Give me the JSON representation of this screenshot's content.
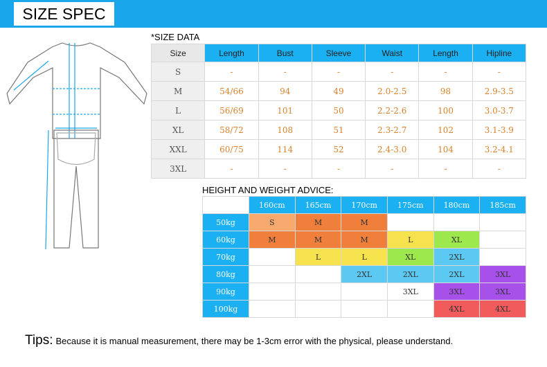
{
  "header": {
    "title": "SIZE SPEC"
  },
  "size_table": {
    "label": "*SIZE DATA",
    "columns": [
      "Size",
      "Length",
      "Bust",
      "Sleeve",
      "Waist",
      "Length",
      "Hipline"
    ],
    "rows": [
      [
        "S",
        "-",
        "-",
        "-",
        "-",
        "-",
        "-"
      ],
      [
        "M",
        "54/66",
        "94",
        "49",
        "2.0-2.5",
        "98",
        "2.9-3.5"
      ],
      [
        "L",
        "56/69",
        "101",
        "50",
        "2.2-2.6",
        "100",
        "3.0-3.7"
      ],
      [
        "XL",
        "58/72",
        "108",
        "51",
        "2.3-2.7",
        "102",
        "3.1-3.9"
      ],
      [
        "XXL",
        "60/75",
        "114",
        "52",
        "2.4-3.0",
        "104",
        "3.2-4.1"
      ],
      [
        "3XL",
        "-",
        "-",
        "-",
        "-",
        "-",
        "-"
      ]
    ]
  },
  "advice_table": {
    "label": "HEIGHT AND WEIGHT ADVICE:",
    "heights": [
      "160cm",
      "165cm",
      "170cm",
      "175cm",
      "180cm",
      "185cm"
    ],
    "weights": [
      "50kg",
      "60kg",
      "70kg",
      "80kg",
      "90kg",
      "100kg"
    ],
    "cells": [
      [
        "S",
        "M",
        "M",
        null,
        null,
        null
      ],
      [
        "M",
        "M",
        "M",
        "L",
        "XL",
        null
      ],
      [
        null,
        "L",
        "L",
        "XL",
        "2XL",
        null
      ],
      [
        null,
        null,
        "2XL",
        "2XL",
        "2XL",
        "3XL"
      ],
      [
        null,
        null,
        null,
        "3XL",
        "3XL",
        "3XL"
      ],
      [
        null,
        null,
        null,
        null,
        "4XL",
        "4XL"
      ]
    ],
    "cell_colors": [
      [
        "#f6a86d",
        "#f07f3c",
        "#f07f3c",
        null,
        null,
        null
      ],
      [
        "#f07f3c",
        "#f07f3c",
        "#f07f3c",
        "#f6e24c",
        "#9de84c",
        null
      ],
      [
        null,
        "#f6e24c",
        "#f6e24c",
        "#9de84c",
        "#5cc9f2",
        null
      ],
      [
        null,
        null,
        "#5cc9f2",
        "#5cc9f2",
        "#5cc9f2",
        "#a850ea"
      ],
      [
        null,
        null,
        null,
        null,
        "#a850ea",
        "#a850ea"
      ],
      [
        null,
        null,
        null,
        null,
        "#f25b5b",
        "#f25b5b"
      ]
    ]
  },
  "tips": {
    "label": "Tips:",
    "text": "Because it is manual measurement, there may be 1-3cm error with the physical, please understand."
  }
}
